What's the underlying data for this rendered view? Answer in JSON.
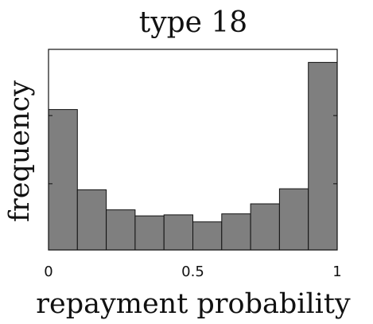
{
  "chart_data": {
    "type": "bar",
    "title": "type 18",
    "xlabel": "repayment probability",
    "ylabel": "frequency",
    "bin_edges": [
      0,
      0.1,
      0.2,
      0.3,
      0.4,
      0.5,
      0.6,
      0.7,
      0.8,
      0.9,
      1.0
    ],
    "values": [
      0.7,
      0.3,
      0.2,
      0.17,
      0.175,
      0.14,
      0.18,
      0.23,
      0.305,
      0.935
    ],
    "xlim": [
      0,
      1
    ],
    "ylim": [
      0,
      1
    ],
    "xticks": [
      0,
      0.5,
      1
    ],
    "xtick_labels": [
      "0",
      "0.5",
      "1"
    ],
    "yticks": [
      0.33,
      0.67
    ],
    "ytick_labels": [],
    "grid": false,
    "bar_color": "#7f7f7f"
  }
}
